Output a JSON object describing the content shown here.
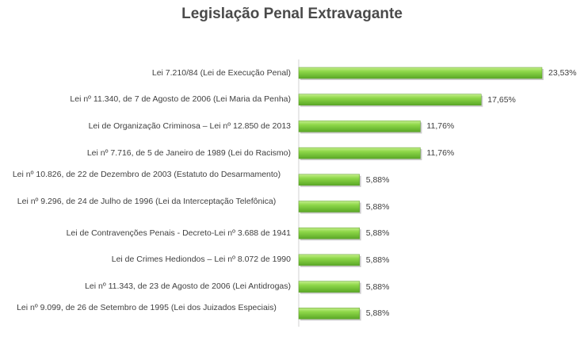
{
  "chart_data": {
    "type": "bar",
    "orientation": "horizontal",
    "title": "Legislação Penal Extravagante",
    "categories": [
      "Lei 7.210/84 (Lei de Execução Penal)",
      "Lei nº 11.340, de 7 de Agosto de 2006 (Lei Maria da Penha)",
      "Lei de Organização Criminosa – Lei nº 12.850 de 2013",
      "Lei nº 7.716, de 5 de Janeiro de 1989 (Lei do Racismo)",
      "Lei nº 10.826, de 22 de Dezembro de 2003 (Estatuto do Desarmamento)",
      "Lei nº 9.296, de 24 de Julho de 1996 (Lei da Interceptação Telefônica)",
      "Lei de Contravenções Penais - Decreto-Lei nº 3.688 de 1941",
      "Lei de Crimes Hediondos – Lei nº 8.072 de 1990",
      "Lei nº 11.343, de 23 de Agosto de 2006 (Lei Antidrogas)",
      "Lei nº 9.099, de 26 de Setembro de 1995 (Lei dos Juizados Especiais)"
    ],
    "values": [
      23.53,
      17.65,
      11.76,
      11.76,
      5.88,
      5.88,
      5.88,
      5.88,
      5.88,
      5.88
    ],
    "data_labels": [
      "23,53%",
      "17,65%",
      "11,76%",
      "11,76%",
      "5,88%",
      "5,88%",
      "5,88%",
      "5,88%",
      "5,88%",
      "5,88%"
    ],
    "xlim": [
      0,
      23.53
    ],
    "grid": false,
    "legend": "none",
    "bar_color": "#7fcf3a"
  }
}
